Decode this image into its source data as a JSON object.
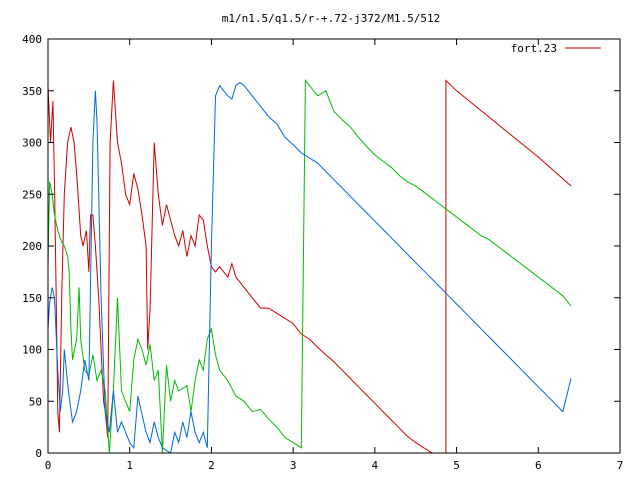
{
  "chart_data": {
    "type": "line",
    "title": "m1/n1.5/q1.5/r-+.72-j372/M1.5/512",
    "xlabel": "",
    "ylabel": "",
    "xlim": [
      0,
      7
    ],
    "ylim": [
      0,
      400
    ],
    "x_ticks": [
      "0",
      "1",
      "2",
      "3",
      "4",
      "5",
      "6",
      "7"
    ],
    "y_ticks": [
      "0",
      "50",
      "100",
      "150",
      "200",
      "250",
      "300",
      "350",
      "400"
    ],
    "legend": {
      "position": "top-right",
      "label": "fort.23"
    },
    "grid": false,
    "series": [
      {
        "name": "fort.23",
        "color": "#cc0000",
        "points": [
          [
            0.0,
            355
          ],
          [
            0.03,
            300
          ],
          [
            0.06,
            340
          ],
          [
            0.08,
            260
          ],
          [
            0.1,
            150
          ],
          [
            0.12,
            40
          ],
          [
            0.14,
            20
          ],
          [
            0.17,
            160
          ],
          [
            0.2,
            250
          ],
          [
            0.24,
            300
          ],
          [
            0.28,
            315
          ],
          [
            0.32,
            300
          ],
          [
            0.36,
            260
          ],
          [
            0.4,
            210
          ],
          [
            0.43,
            200
          ],
          [
            0.47,
            215
          ],
          [
            0.5,
            175
          ],
          [
            0.52,
            230
          ],
          [
            0.55,
            230
          ],
          [
            0.58,
            200
          ],
          [
            0.62,
            150
          ],
          [
            0.65,
            100
          ],
          [
            0.68,
            50
          ],
          [
            0.7,
            40
          ],
          [
            0.73,
            15
          ],
          [
            0.76,
            300
          ],
          [
            0.8,
            360
          ],
          [
            0.85,
            300
          ],
          [
            0.9,
            280
          ],
          [
            0.95,
            250
          ],
          [
            1.0,
            240
          ],
          [
            1.05,
            270
          ],
          [
            1.1,
            255
          ],
          [
            1.15,
            230
          ],
          [
            1.2,
            200
          ],
          [
            1.22,
            100
          ],
          [
            1.25,
            140
          ],
          [
            1.3,
            300
          ],
          [
            1.35,
            250
          ],
          [
            1.4,
            220
          ],
          [
            1.45,
            240
          ],
          [
            1.5,
            225
          ],
          [
            1.55,
            210
          ],
          [
            1.6,
            200
          ],
          [
            1.65,
            215
          ],
          [
            1.7,
            190
          ],
          [
            1.75,
            210
          ],
          [
            1.8,
            200
          ],
          [
            1.85,
            230
          ],
          [
            1.9,
            225
          ],
          [
            1.95,
            200
          ],
          [
            2.0,
            180
          ],
          [
            2.05,
            175
          ],
          [
            2.1,
            180
          ],
          [
            2.15,
            175
          ],
          [
            2.2,
            170
          ],
          [
            2.25,
            183
          ],
          [
            2.3,
            170
          ],
          [
            2.4,
            160
          ],
          [
            2.5,
            150
          ],
          [
            2.6,
            140
          ],
          [
            2.7,
            140
          ],
          [
            2.8,
            135
          ],
          [
            2.9,
            130
          ],
          [
            3.0,
            125
          ],
          [
            3.1,
            115
          ],
          [
            3.2,
            110
          ],
          [
            3.3,
            102
          ],
          [
            3.4,
            95
          ],
          [
            3.5,
            88
          ],
          [
            3.6,
            80
          ],
          [
            3.7,
            72
          ],
          [
            3.8,
            64
          ],
          [
            3.9,
            56
          ],
          [
            4.0,
            48
          ],
          [
            4.1,
            40
          ],
          [
            4.2,
            32
          ],
          [
            4.3,
            24
          ],
          [
            4.4,
            16
          ],
          [
            4.5,
            10
          ],
          [
            4.6,
            5
          ],
          [
            4.7,
            0
          ],
          [
            4.87,
            0
          ],
          [
            4.87,
            360
          ],
          [
            5.0,
            350
          ],
          [
            5.5,
            318
          ],
          [
            6.0,
            286
          ],
          [
            6.4,
            258
          ]
        ]
      },
      {
        "name": "",
        "color": "#00bb00",
        "points": [
          [
            0.0,
            180
          ],
          [
            0.02,
            262
          ],
          [
            0.05,
            250
          ],
          [
            0.08,
            230
          ],
          [
            0.12,
            215
          ],
          [
            0.16,
            205
          ],
          [
            0.2,
            200
          ],
          [
            0.24,
            190
          ],
          [
            0.26,
            175
          ],
          [
            0.28,
            120
          ],
          [
            0.3,
            90
          ],
          [
            0.35,
            110
          ],
          [
            0.38,
            160
          ],
          [
            0.4,
            110
          ],
          [
            0.45,
            80
          ],
          [
            0.5,
            75
          ],
          [
            0.55,
            95
          ],
          [
            0.6,
            70
          ],
          [
            0.65,
            80
          ],
          [
            0.7,
            60
          ],
          [
            0.75,
            0
          ],
          [
            0.8,
            60
          ],
          [
            0.85,
            150
          ],
          [
            0.9,
            60
          ],
          [
            1.0,
            40
          ],
          [
            1.05,
            90
          ],
          [
            1.1,
            110
          ],
          [
            1.15,
            100
          ],
          [
            1.2,
            85
          ],
          [
            1.25,
            105
          ],
          [
            1.3,
            70
          ],
          [
            1.35,
            80
          ],
          [
            1.4,
            0
          ],
          [
            1.45,
            85
          ],
          [
            1.5,
            50
          ],
          [
            1.55,
            70
          ],
          [
            1.6,
            60
          ],
          [
            1.7,
            65
          ],
          [
            1.75,
            40
          ],
          [
            1.8,
            70
          ],
          [
            1.85,
            90
          ],
          [
            1.9,
            80
          ],
          [
            1.95,
            110
          ],
          [
            2.0,
            120
          ],
          [
            2.05,
            95
          ],
          [
            2.1,
            80
          ],
          [
            2.2,
            70
          ],
          [
            2.3,
            55
          ],
          [
            2.4,
            50
          ],
          [
            2.5,
            40
          ],
          [
            2.6,
            42
          ],
          [
            2.7,
            33
          ],
          [
            2.8,
            25
          ],
          [
            2.9,
            15
          ],
          [
            3.0,
            10
          ],
          [
            3.1,
            5
          ],
          [
            3.15,
            360
          ],
          [
            3.2,
            355
          ],
          [
            3.3,
            345
          ],
          [
            3.4,
            350
          ],
          [
            3.5,
            330
          ],
          [
            3.6,
            322
          ],
          [
            3.7,
            315
          ],
          [
            3.8,
            305
          ],
          [
            3.9,
            296
          ],
          [
            4.0,
            288
          ],
          [
            4.1,
            282
          ],
          [
            4.2,
            276
          ],
          [
            4.3,
            268
          ],
          [
            4.4,
            262
          ],
          [
            4.5,
            258
          ],
          [
            4.6,
            252
          ],
          [
            4.7,
            246
          ],
          [
            4.8,
            240
          ],
          [
            4.9,
            234
          ],
          [
            5.0,
            228
          ],
          [
            5.1,
            222
          ],
          [
            5.2,
            216
          ],
          [
            5.3,
            210
          ],
          [
            5.4,
            206
          ],
          [
            5.5,
            200
          ],
          [
            5.6,
            194
          ],
          [
            5.7,
            188
          ],
          [
            5.8,
            182
          ],
          [
            5.9,
            176
          ],
          [
            6.0,
            170
          ],
          [
            6.1,
            164
          ],
          [
            6.2,
            158
          ],
          [
            6.3,
            152
          ],
          [
            6.4,
            142
          ]
        ]
      },
      {
        "name": "",
        "color": "#0066dd",
        "points": [
          [
            0.0,
            120
          ],
          [
            0.02,
            145
          ],
          [
            0.05,
            160
          ],
          [
            0.08,
            150
          ],
          [
            0.12,
            80
          ],
          [
            0.15,
            40
          ],
          [
            0.18,
            60
          ],
          [
            0.2,
            100
          ],
          [
            0.25,
            60
          ],
          [
            0.3,
            30
          ],
          [
            0.35,
            40
          ],
          [
            0.4,
            60
          ],
          [
            0.45,
            90
          ],
          [
            0.5,
            70
          ],
          [
            0.55,
            300
          ],
          [
            0.58,
            350
          ],
          [
            0.6,
            320
          ],
          [
            0.65,
            150
          ],
          [
            0.7,
            40
          ],
          [
            0.75,
            20
          ],
          [
            0.8,
            60
          ],
          [
            0.85,
            20
          ],
          [
            0.9,
            30
          ],
          [
            1.0,
            10
          ],
          [
            1.05,
            5
          ],
          [
            1.1,
            55
          ],
          [
            1.2,
            20
          ],
          [
            1.25,
            10
          ],
          [
            1.3,
            30
          ],
          [
            1.35,
            15
          ],
          [
            1.4,
            5
          ],
          [
            1.5,
            0
          ],
          [
            1.55,
            20
          ],
          [
            1.6,
            10
          ],
          [
            1.65,
            30
          ],
          [
            1.7,
            15
          ],
          [
            1.75,
            40
          ],
          [
            1.8,
            20
          ],
          [
            1.85,
            10
          ],
          [
            1.9,
            20
          ],
          [
            1.95,
            5
          ],
          [
            2.0,
            200
          ],
          [
            2.05,
            345
          ],
          [
            2.1,
            355
          ],
          [
            2.15,
            350
          ],
          [
            2.2,
            345
          ],
          [
            2.25,
            342
          ],
          [
            2.3,
            355
          ],
          [
            2.35,
            358
          ],
          [
            2.4,
            355
          ],
          [
            2.5,
            345
          ],
          [
            2.6,
            335
          ],
          [
            2.7,
            325
          ],
          [
            2.8,
            318
          ],
          [
            2.9,
            305
          ],
          [
            3.0,
            298
          ],
          [
            3.1,
            290
          ],
          [
            3.2,
            285
          ],
          [
            3.3,
            280
          ],
          [
            3.4,
            272
          ],
          [
            3.5,
            264
          ],
          [
            3.6,
            256
          ],
          [
            3.7,
            248
          ],
          [
            3.8,
            240
          ],
          [
            3.9,
            232
          ],
          [
            4.0,
            224
          ],
          [
            4.1,
            216
          ],
          [
            4.2,
            208
          ],
          [
            4.3,
            200
          ],
          [
            4.4,
            192
          ],
          [
            4.5,
            184
          ],
          [
            4.6,
            176
          ],
          [
            4.7,
            168
          ],
          [
            4.8,
            160
          ],
          [
            4.9,
            152
          ],
          [
            5.0,
            144
          ],
          [
            5.1,
            136
          ],
          [
            5.2,
            128
          ],
          [
            5.3,
            120
          ],
          [
            5.4,
            112
          ],
          [
            5.5,
            104
          ],
          [
            5.6,
            96
          ],
          [
            5.7,
            88
          ],
          [
            5.8,
            80
          ],
          [
            5.9,
            72
          ],
          [
            6.0,
            64
          ],
          [
            6.1,
            56
          ],
          [
            6.2,
            48
          ],
          [
            6.3,
            40
          ],
          [
            6.4,
            72
          ]
        ]
      }
    ]
  }
}
